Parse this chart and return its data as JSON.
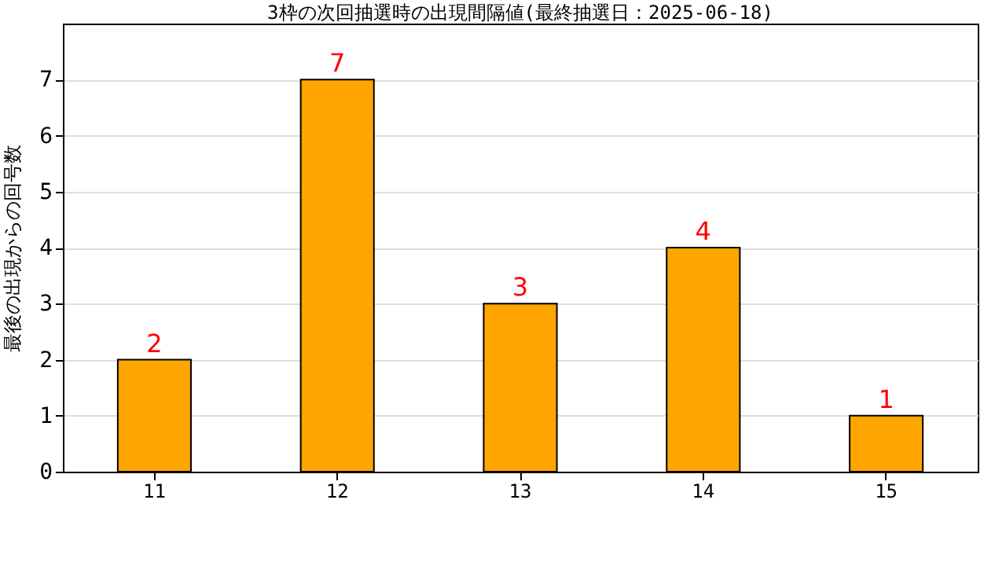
{
  "chart_data": {
    "type": "bar",
    "title": "3枠の次回抽選時の出現間隔値(最終抽選日：2025-06-18)",
    "ylabel": "最後の出現からの回号数",
    "categories": [
      "11",
      "12",
      "13",
      "14",
      "15"
    ],
    "values": [
      2,
      7,
      3,
      4,
      1
    ],
    "color": "#ffa500",
    "ylim": [
      0,
      8
    ],
    "yticks": [
      0,
      1,
      2,
      3,
      4,
      5,
      6,
      7
    ],
    "grid": "y",
    "data_labels": true
  }
}
